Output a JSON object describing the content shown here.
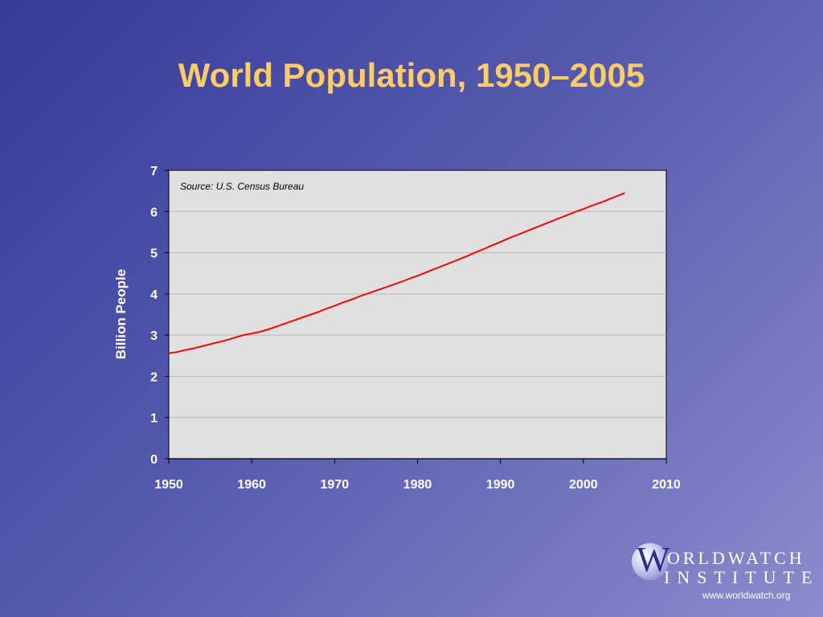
{
  "title": "World Population, 1950–2005",
  "chart_data": {
    "type": "line",
    "title": "World Population, 1950–2005",
    "xlabel": "",
    "ylabel": "Billion People",
    "xlim": [
      1950,
      2010
    ],
    "ylim": [
      0,
      7
    ],
    "x_ticks": [
      1950,
      1960,
      1970,
      1980,
      1990,
      2000,
      2010
    ],
    "y_ticks": [
      0,
      1,
      2,
      3,
      4,
      5,
      6,
      7
    ],
    "grid": true,
    "annotation": "Source:  U.S. Census Bureau",
    "series": [
      {
        "color": "#ff0000",
        "x": [
          1950,
          1951,
          1952,
          1953,
          1954,
          1955,
          1956,
          1957,
          1958,
          1959,
          1960,
          1961,
          1962,
          1963,
          1964,
          1965,
          1966,
          1967,
          1968,
          1969,
          1970,
          1971,
          1972,
          1973,
          1974,
          1975,
          1976,
          1977,
          1978,
          1979,
          1980,
          1981,
          1982,
          1983,
          1984,
          1985,
          1986,
          1987,
          1988,
          1989,
          1990,
          1991,
          1992,
          1993,
          1994,
          1995,
          1996,
          1997,
          1998,
          1999,
          2000,
          2001,
          2002,
          2003,
          2004,
          2005
        ],
        "y": [
          2.56,
          2.59,
          2.64,
          2.68,
          2.73,
          2.78,
          2.83,
          2.88,
          2.94,
          3.0,
          3.04,
          3.08,
          3.14,
          3.21,
          3.28,
          3.35,
          3.42,
          3.49,
          3.56,
          3.64,
          3.71,
          3.79,
          3.86,
          3.94,
          4.01,
          4.08,
          4.15,
          4.22,
          4.29,
          4.37,
          4.44,
          4.52,
          4.6,
          4.68,
          4.76,
          4.84,
          4.92,
          5.01,
          5.09,
          5.18,
          5.26,
          5.35,
          5.43,
          5.51,
          5.59,
          5.67,
          5.75,
          5.83,
          5.91,
          5.99,
          6.06,
          6.14,
          6.21,
          6.29,
          6.37,
          6.45
        ]
      }
    ]
  },
  "logo": {
    "letter": "W",
    "line1": "ORLDWATCH",
    "line2": "INSTITUTE",
    "url": "www.worldwatch.org"
  },
  "colors": {
    "title": "#ffcc66",
    "plot_bg": "#e0e0e0",
    "line": "#ff0000",
    "axis_text": "#ffffff"
  }
}
